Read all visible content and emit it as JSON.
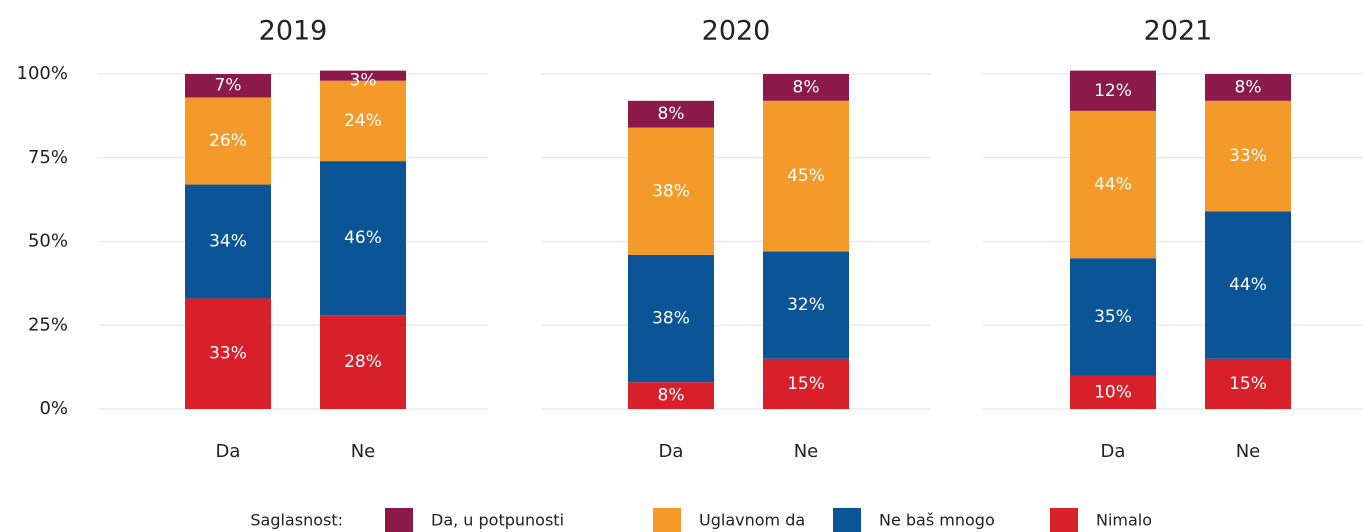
{
  "chart_data": [
    {
      "type": "bar",
      "title": "2019",
      "categories": [
        "Da",
        "Ne"
      ],
      "series": [
        {
          "name": "Da, u potpunosti",
          "color": "#8b1a4b",
          "values": [
            7,
            3
          ],
          "value_labels": [
            "7%",
            "3%"
          ]
        },
        {
          "name": "Uglavnom da",
          "color": "#f39a2b",
          "values": [
            26,
            24
          ],
          "value_labels": [
            "26%",
            "24%"
          ]
        },
        {
          "name": "Ne baš mnogo",
          "color": "#0b5597",
          "values": [
            34,
            46
          ],
          "value_labels": [
            "34%",
            "46%"
          ]
        },
        {
          "name": "Nimalo",
          "color": "#d7202a",
          "values": [
            33,
            28
          ],
          "value_labels": [
            "33%",
            "28%"
          ]
        }
      ],
      "ylim": [
        0,
        100
      ],
      "yticks": [
        {
          "value": 0,
          "label": "0%"
        },
        {
          "value": 25,
          "label": "25%"
        },
        {
          "value": 50,
          "label": "50%"
        },
        {
          "value": 75,
          "label": "75%"
        },
        {
          "value": 100,
          "label": "100%"
        }
      ],
      "legend_title": "Saglasnost:",
      "legend": "bottom"
    },
    {
      "type": "bar",
      "title": "2020",
      "categories": [
        "Da",
        "Ne"
      ],
      "series": [
        {
          "name": "Da, u potpunosti",
          "color": "#8b1a4b",
          "values": [
            8,
            8
          ],
          "value_labels": [
            "8%",
            "8%"
          ]
        },
        {
          "name": "Uglavnom da",
          "color": "#f39a2b",
          "values": [
            38,
            45
          ],
          "value_labels": [
            "38%",
            "45%"
          ]
        },
        {
          "name": "Ne baš mnogo",
          "color": "#0b5597",
          "values": [
            38,
            32
          ],
          "value_labels": [
            "38%",
            "32%"
          ]
        },
        {
          "name": "Nimalo",
          "color": "#d7202a",
          "values": [
            8,
            15
          ],
          "value_labels": [
            "8%",
            "15%"
          ]
        }
      ],
      "ylim": [
        0,
        100
      ]
    },
    {
      "type": "bar",
      "title": "2021",
      "categories": [
        "Da",
        "Ne"
      ],
      "series": [
        {
          "name": "Da, u potpunosti",
          "color": "#8b1a4b",
          "values": [
            12,
            8
          ],
          "value_labels": [
            "12%",
            "8%"
          ]
        },
        {
          "name": "Uglavnom da",
          "color": "#f39a2b",
          "values": [
            44,
            33
          ],
          "value_labels": [
            "44%",
            "33%"
          ]
        },
        {
          "name": "Ne baš mnogo",
          "color": "#0b5597",
          "values": [
            35,
            44
          ],
          "value_labels": [
            "35%",
            "44%"
          ]
        },
        {
          "name": "Nimalo",
          "color": "#d7202a",
          "values": [
            10,
            15
          ],
          "value_labels": [
            "10%",
            "15%"
          ]
        }
      ],
      "ylim": [
        0,
        100
      ]
    }
  ]
}
